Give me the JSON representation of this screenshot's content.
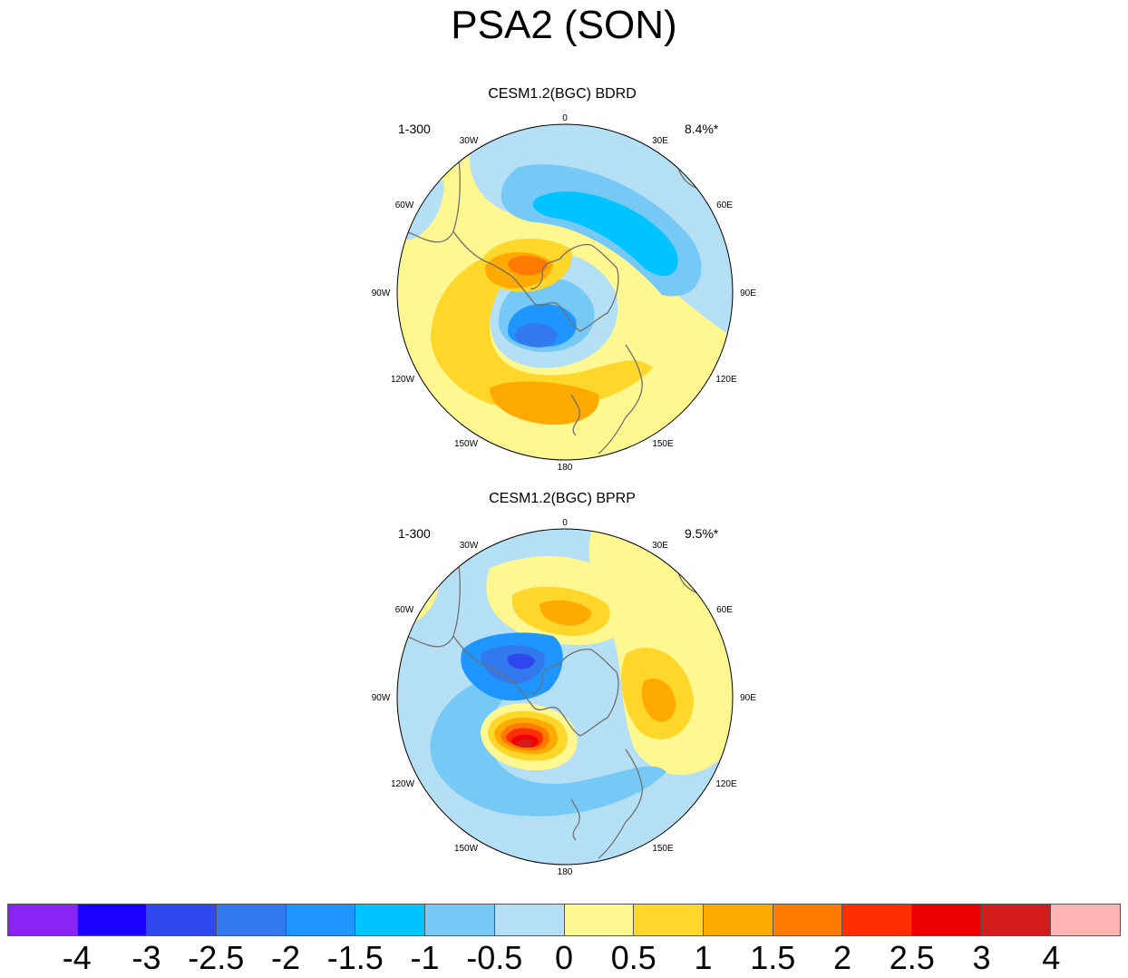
{
  "title": "PSA2 (SON)",
  "panels": [
    {
      "title": "CESM1.2(BGC) BDRD",
      "left_label": "1-300",
      "right_label": "8.4%*",
      "longitude_labels": [
        "0",
        "30E",
        "60E",
        "90E",
        "120E",
        "150E",
        "180",
        "150W",
        "120W",
        "90W",
        "60W",
        "30W"
      ]
    },
    {
      "title": "CESM1.2(BGC) BPRP",
      "left_label": "1-300",
      "right_label": "9.5%*",
      "longitude_labels": [
        "0",
        "30E",
        "60E",
        "90E",
        "120E",
        "150E",
        "180",
        "150W",
        "120W",
        "90W",
        "60W",
        "30W"
      ]
    }
  ],
  "colorbar": {
    "colors": [
      "#8a24f2",
      "#1c00ff",
      "#2d48ec",
      "#3378ec",
      "#1f96ff",
      "#00c3ff",
      "#76c8f5",
      "#b4dff5",
      "#fff78f",
      "#ffd72a",
      "#ffaa00",
      "#ff7a00",
      "#ff2e00",
      "#ee0000",
      "#d31d1d",
      "#ffb4b4"
    ],
    "labels": [
      "-4",
      "-3",
      "-2.5",
      "-2",
      "-1.5",
      "-1",
      "-0.5",
      "0",
      "0.5",
      "1",
      "1.5",
      "2",
      "2.5",
      "3",
      "4"
    ]
  }
}
